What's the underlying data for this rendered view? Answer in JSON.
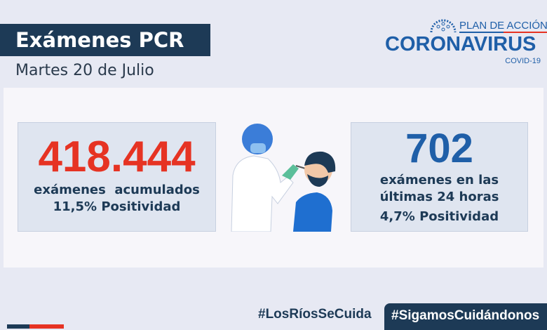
{
  "header": {
    "title": "Exámenes PCR",
    "date": "Martes 20 de Julio"
  },
  "logo": {
    "plan": "PLAN DE ACCIÓN",
    "name": "CORONAVIRUS",
    "sub": "COVID-19"
  },
  "left_card": {
    "value": "418.444",
    "label": "exámenes  acumulados",
    "positivity": "11,5% Positividad"
  },
  "right_card": {
    "value": "702",
    "label_1": "exámenes en las",
    "label_2": "últimas 24 horas",
    "positivity": "4,7% Positividad"
  },
  "footer": {
    "hashtag_1": "#LosRíosSeCuida",
    "hashtag_2": "#SigamosCuidándonos"
  },
  "colors": {
    "navy": "#1d3a56",
    "red": "#e63323",
    "blue": "#1f5fa8"
  }
}
